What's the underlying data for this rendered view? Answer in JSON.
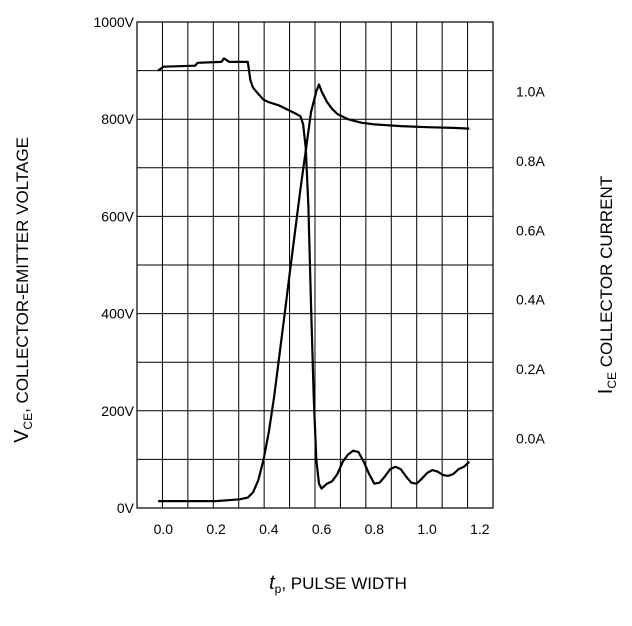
{
  "chart_data": {
    "type": "line",
    "xlabel": {
      "main": "t",
      "sub": "p",
      "rest": ", PULSE WIDTH"
    },
    "ylabel_left": {
      "main": "V",
      "sub": "CE",
      "rest": ", COLLECTOR-EMITTER VOLTAGE"
    },
    "ylabel_right": {
      "main": "I",
      "sub": "CE",
      "rest": " COLLECTOR CURRENT"
    },
    "x_ticks": [
      "0.0",
      "0.2",
      "0.4",
      "0.6",
      "0.8",
      "1.0",
      "1.2"
    ],
    "x_tick_values": [
      0.0,
      0.2,
      0.4,
      0.6,
      0.8,
      1.0,
      1.2
    ],
    "y_left_ticks": [
      "0V",
      "200V",
      "400V",
      "600V",
      "800V",
      "1000V"
    ],
    "y_left_tick_values": [
      0,
      200,
      400,
      600,
      800,
      1000
    ],
    "y_right_ticks": [
      "0.0A",
      "0.2A",
      "0.4A",
      "0.6A",
      "0.8A",
      "1.0A"
    ],
    "y_right_tick_values": [
      0.0,
      0.2,
      0.4,
      0.6,
      0.8,
      1.0
    ],
    "xlim": [
      -0.1,
      1.25
    ],
    "ylim_left": [
      0,
      1000
    ],
    "ylim_right": [
      -0.2,
      1.2
    ],
    "grid": true,
    "series": [
      {
        "axis": "left",
        "points": [
          [
            -0.02,
            900
          ],
          [
            0.0,
            908
          ],
          [
            0.12,
            910
          ],
          [
            0.13,
            916
          ],
          [
            0.22,
            918
          ],
          [
            0.23,
            925
          ],
          [
            0.25,
            918
          ],
          [
            0.32,
            918
          ],
          [
            0.33,
            880
          ],
          [
            0.34,
            865
          ],
          [
            0.36,
            852
          ],
          [
            0.38,
            840
          ],
          [
            0.4,
            835
          ],
          [
            0.44,
            828
          ],
          [
            0.47,
            820
          ],
          [
            0.5,
            812
          ],
          [
            0.52,
            806
          ],
          [
            0.53,
            790
          ],
          [
            0.54,
            740
          ],
          [
            0.55,
            620
          ],
          [
            0.56,
            420
          ],
          [
            0.57,
            230
          ],
          [
            0.58,
            100
          ],
          [
            0.59,
            50
          ],
          [
            0.6,
            40
          ],
          [
            0.62,
            50
          ],
          [
            0.64,
            55
          ],
          [
            0.66,
            70
          ],
          [
            0.68,
            95
          ],
          [
            0.7,
            110
          ],
          [
            0.72,
            118
          ],
          [
            0.74,
            115
          ],
          [
            0.76,
            95
          ],
          [
            0.78,
            70
          ],
          [
            0.8,
            50
          ],
          [
            0.82,
            52
          ],
          [
            0.84,
            65
          ],
          [
            0.86,
            80
          ],
          [
            0.88,
            85
          ],
          [
            0.9,
            80
          ],
          [
            0.92,
            65
          ],
          [
            0.94,
            52
          ],
          [
            0.96,
            50
          ],
          [
            0.98,
            60
          ],
          [
            1.0,
            72
          ],
          [
            1.02,
            78
          ],
          [
            1.04,
            75
          ],
          [
            1.06,
            68
          ],
          [
            1.08,
            66
          ],
          [
            1.1,
            70
          ],
          [
            1.12,
            80
          ],
          [
            1.14,
            85
          ],
          [
            1.16,
            95
          ]
        ]
      },
      {
        "axis": "right",
        "points": [
          [
            -0.02,
            -0.18
          ],
          [
            0.1,
            -0.18
          ],
          [
            0.2,
            -0.18
          ],
          [
            0.29,
            -0.175
          ],
          [
            0.32,
            -0.17
          ],
          [
            0.34,
            -0.155
          ],
          [
            0.36,
            -0.12
          ],
          [
            0.38,
            -0.06
          ],
          [
            0.4,
            0.02
          ],
          [
            0.42,
            0.12
          ],
          [
            0.44,
            0.24
          ],
          [
            0.46,
            0.36
          ],
          [
            0.48,
            0.48
          ],
          [
            0.5,
            0.6
          ],
          [
            0.52,
            0.72
          ],
          [
            0.54,
            0.83
          ],
          [
            0.56,
            0.94
          ],
          [
            0.58,
            1.0
          ],
          [
            0.59,
            1.02
          ],
          [
            0.6,
            1.0
          ],
          [
            0.62,
            0.97
          ],
          [
            0.64,
            0.95
          ],
          [
            0.66,
            0.935
          ],
          [
            0.7,
            0.92
          ],
          [
            0.75,
            0.91
          ],
          [
            0.8,
            0.905
          ],
          [
            0.9,
            0.9
          ],
          [
            1.0,
            0.897
          ],
          [
            1.1,
            0.895
          ],
          [
            1.16,
            0.893
          ]
        ]
      }
    ]
  }
}
